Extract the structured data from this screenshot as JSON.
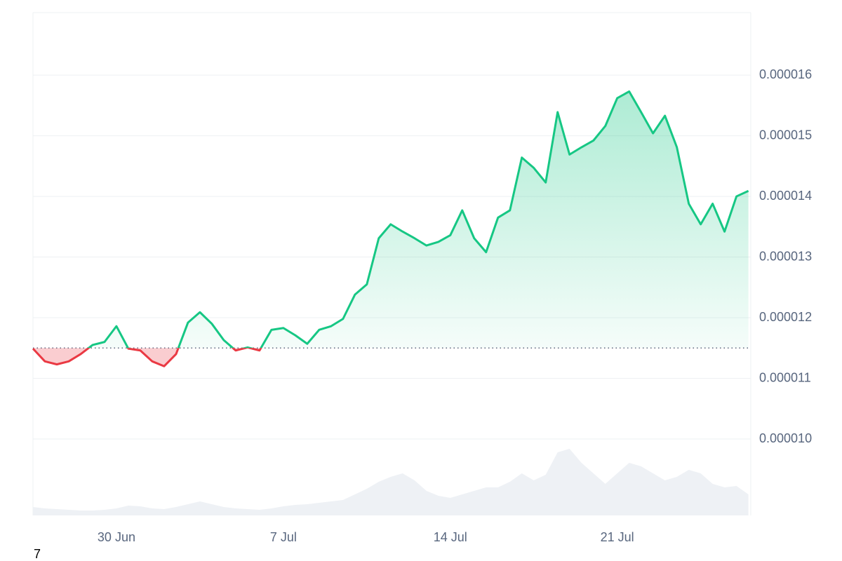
{
  "chart_data": {
    "type": "line",
    "x": [
      26.5,
      27,
      27.5,
      28,
      28.5,
      29,
      29.5,
      30,
      30.5,
      31,
      31.5,
      32,
      32.5,
      33,
      33.5,
      34,
      34.5,
      35,
      35.5,
      36,
      36.5,
      37,
      37.5,
      38,
      38.5,
      39,
      39.5,
      40,
      40.5,
      41,
      41.5,
      42,
      42.5,
      43,
      43.5,
      44,
      44.5,
      45,
      45.5,
      46,
      46.5,
      47,
      47.5,
      48,
      48.5,
      49,
      49.5,
      50,
      50.5,
      51,
      51.5,
      52,
      52.5,
      53,
      53.5,
      54,
      54.5,
      55,
      55.5,
      56,
      56.5
    ],
    "series": [
      {
        "color": "#16c784",
        "down_color": "#ea3943",
        "values": [
          1.149e-05,
          1.128e-05,
          1.123e-05,
          1.128e-05,
          1.14e-05,
          1.155e-05,
          1.16e-05,
          1.186e-05,
          1.149e-05,
          1.146e-05,
          1.128e-05,
          1.12e-05,
          1.14e-05,
          1.192e-05,
          1.209e-05,
          1.19e-05,
          1.163e-05,
          1.146e-05,
          1.151e-05,
          1.146e-05,
          1.18e-05,
          1.183e-05,
          1.171e-05,
          1.157e-05,
          1.18e-05,
          1.186e-05,
          1.198e-05,
          1.238e-05,
          1.255e-05,
          1.331e-05,
          1.354e-05,
          1.342e-05,
          1.331e-05,
          1.319e-05,
          1.325e-05,
          1.336e-05,
          1.377e-05,
          1.331e-05,
          1.308e-05,
          1.365e-05,
          1.377e-05,
          1.464e-05,
          1.447e-05,
          1.423e-05,
          1.539e-05,
          1.469e-05,
          1.481e-05,
          1.492e-05,
          1.516e-05,
          1.562e-05,
          1.573e-05,
          1.539e-05,
          1.504e-05,
          1.533e-05,
          1.481e-05,
          1.388e-05,
          1.354e-05,
          1.388e-05,
          1.342e-05,
          1.4e-05,
          1.409e-05
        ]
      }
    ],
    "baseline": 1.15e-05,
    "volume": {
      "color": "#eef1f5",
      "ylim": [
        0,
        100
      ],
      "values": [
        12,
        10,
        9,
        8,
        7,
        7,
        8,
        10,
        14,
        13,
        10,
        9,
        12,
        16,
        20,
        16,
        12,
        10,
        9,
        8,
        10,
        13,
        15,
        16,
        18,
        20,
        22,
        30,
        38,
        48,
        55,
        60,
        50,
        35,
        28,
        25,
        30,
        35,
        40,
        40,
        48,
        60,
        50,
        58,
        90,
        95,
        75,
        60,
        45,
        60,
        75,
        70,
        60,
        50,
        55,
        65,
        60,
        45,
        40,
        42,
        30
      ]
    },
    "xlim": [
      26.5,
      56.6
    ],
    "xticks": [
      {
        "value": 30,
        "label": "30 Jun"
      },
      {
        "value": 37,
        "label": "7 Jul"
      },
      {
        "value": 44,
        "label": "14 Jul"
      },
      {
        "value": 51,
        "label": "21 Jul"
      }
    ],
    "ylim": [
      8.74e-06,
      1.703e-05
    ],
    "yticks": [
      {
        "value": 1e-05,
        "label": "0.000010"
      },
      1.1e-05,
      1.2e-05,
      1.3e-05,
      1.4e-05,
      1.5e-05,
      1.6e-05
    ],
    "grid": true,
    "annotation": "7"
  }
}
